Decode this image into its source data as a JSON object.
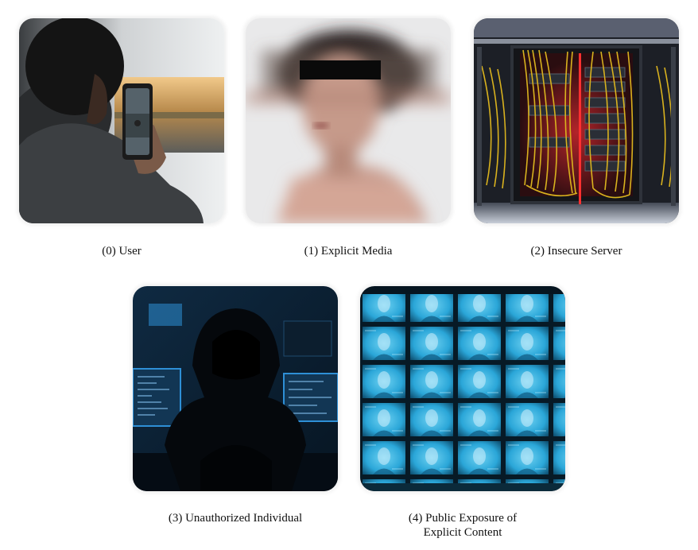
{
  "panels": [
    {
      "label": "(0) User",
      "icon": "person-with-phone-icon"
    },
    {
      "label": "(1) Explicit Media",
      "icon": "blurred-censored-person-icon"
    },
    {
      "label": "(2) Insecure Server",
      "icon": "server-rack-icon"
    },
    {
      "label": "(3) Unauthorized Individual",
      "icon": "hooded-hacker-icon"
    },
    {
      "label": "(4) Public Exposure of Explicit Content",
      "icon": "screen-wall-icon"
    }
  ],
  "colors": {
    "background": "#ffffff",
    "server_cable": "#d9b21e",
    "hacker_glow": "#2e8fd6",
    "screen_wall": "#2aa6d8"
  }
}
